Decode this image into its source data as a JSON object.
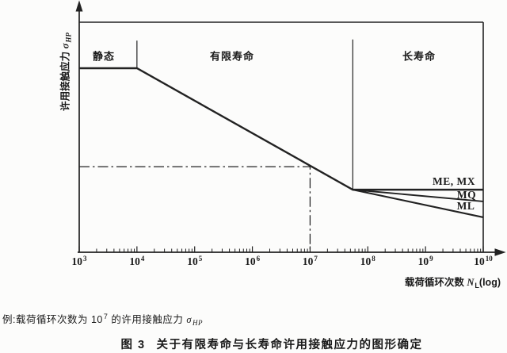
{
  "colors": {
    "ink": "#1b1b1b",
    "line": "#222222",
    "background": "#fcfcfb"
  },
  "labels": {
    "ylabel": {
      "cjk": "许用接触应力 ",
      "sym": "σ",
      "sub": "HP"
    },
    "xlabel": {
      "cjk": "载荷循环次数 ",
      "var": "N",
      "sub": "L",
      "suffix": "(log)"
    }
  },
  "caption": {
    "prefix": "例:载荷循环次数为 10",
    "sup": "7",
    "mid": " 的许用接触应力 ",
    "sym": "σ",
    "sub": "HP"
  },
  "title": {
    "fig_no": "图 3",
    "text": "关于有限寿命与长寿命许用接触应力的图形确定"
  },
  "chart_data": {
    "type": "line",
    "x_axis": {
      "label": "载荷循环次数 N_L (log)",
      "scale": "log",
      "tick_base": "10",
      "tick_exponents": [
        3,
        4,
        5,
        6,
        7,
        8,
        9,
        10
      ],
      "tick_labels": [
        "10^3",
        "10^4",
        "10^5",
        "10^6",
        "10^7",
        "10^8",
        "10^9",
        "10^10"
      ],
      "range_exp": [
        3,
        10
      ],
      "minor_ticks": "log multiples 2-9 each decade"
    },
    "y_axis": {
      "label": "许用接触应力 σ_HP",
      "scale": "relative (no numeric ticks)",
      "range": [
        0,
        1
      ]
    },
    "regions": [
      {
        "label": "静态",
        "from_exp": 3,
        "to_exp": 4
      },
      {
        "label": "有限寿命",
        "from_exp": 4,
        "to_exp": 7.74
      },
      {
        "label": "长寿命",
        "from_exp": 7.74,
        "to_exp": 10
      }
    ],
    "series": [
      {
        "name": "ME, MX",
        "points": [
          [
            3,
            0.8
          ],
          [
            4,
            0.8
          ],
          [
            7.74,
            0.272
          ],
          [
            10,
            0.272
          ]
        ]
      },
      {
        "name": "MQ",
        "points": [
          [
            7.74,
            0.272
          ],
          [
            10,
            0.221
          ]
        ]
      },
      {
        "name": "ML",
        "points": [
          [
            7.74,
            0.272
          ],
          [
            10,
            0.152
          ]
        ]
      }
    ],
    "separators": [
      {
        "x_exp": 4,
        "y_from": 0.8,
        "y_to": 0.92
      },
      {
        "x_exp": 7.74,
        "y_from": 0.272,
        "y_to": 0.925
      }
    ],
    "frame": {
      "top_y": 1.0,
      "right_exp": 10
    },
    "example_marker": {
      "x_exp": 7,
      "y": 0.372,
      "style": "dash-dot"
    },
    "legend_position": "labels at right ends of lines",
    "grid": false
  }
}
